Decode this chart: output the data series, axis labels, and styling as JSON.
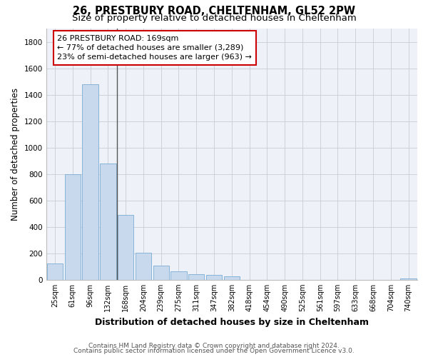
{
  "title1": "26, PRESTBURY ROAD, CHELTENHAM, GL52 2PW",
  "title2": "Size of property relative to detached houses in Cheltenham",
  "xlabel": "Distribution of detached houses by size in Cheltenham",
  "ylabel": "Number of detached properties",
  "categories": [
    "25sqm",
    "61sqm",
    "96sqm",
    "132sqm",
    "168sqm",
    "204sqm",
    "239sqm",
    "275sqm",
    "311sqm",
    "347sqm",
    "382sqm",
    "418sqm",
    "454sqm",
    "490sqm",
    "525sqm",
    "561sqm",
    "597sqm",
    "633sqm",
    "668sqm",
    "704sqm",
    "740sqm"
  ],
  "values": [
    125,
    800,
    1480,
    880,
    490,
    205,
    105,
    65,
    40,
    35,
    25,
    0,
    0,
    0,
    0,
    0,
    0,
    0,
    0,
    0,
    12
  ],
  "bar_color": "#c8d8ed",
  "bar_edge_color": "#7aadd4",
  "vline_x_idx": 3.5,
  "vline_color": "#555555",
  "annotation_line1": "26 PRESTBURY ROAD: 169sqm",
  "annotation_line2": "← 77% of detached houses are smaller (3,289)",
  "annotation_line3": "23% of semi-detached houses are larger (963) →",
  "annotation_box_facecolor": "#ffffff",
  "annotation_box_edgecolor": "#cc0000",
  "ylim": [
    0,
    1900
  ],
  "yticks": [
    0,
    200,
    400,
    600,
    800,
    1000,
    1200,
    1400,
    1600,
    1800
  ],
  "footer1": "Contains HM Land Registry data © Crown copyright and database right 2024.",
  "footer2": "Contains public sector information licensed under the Open Government Licence v3.0.",
  "bg_color": "#eef2f8",
  "grid_color": "#c8cdd6",
  "title1_fontsize": 10.5,
  "title2_fontsize": 9.5,
  "annotation_fontsize": 8.0,
  "tick_fontsize": 7.0,
  "ylabel_fontsize": 8.5,
  "xlabel_fontsize": 9.0,
  "footer_fontsize": 6.5
}
